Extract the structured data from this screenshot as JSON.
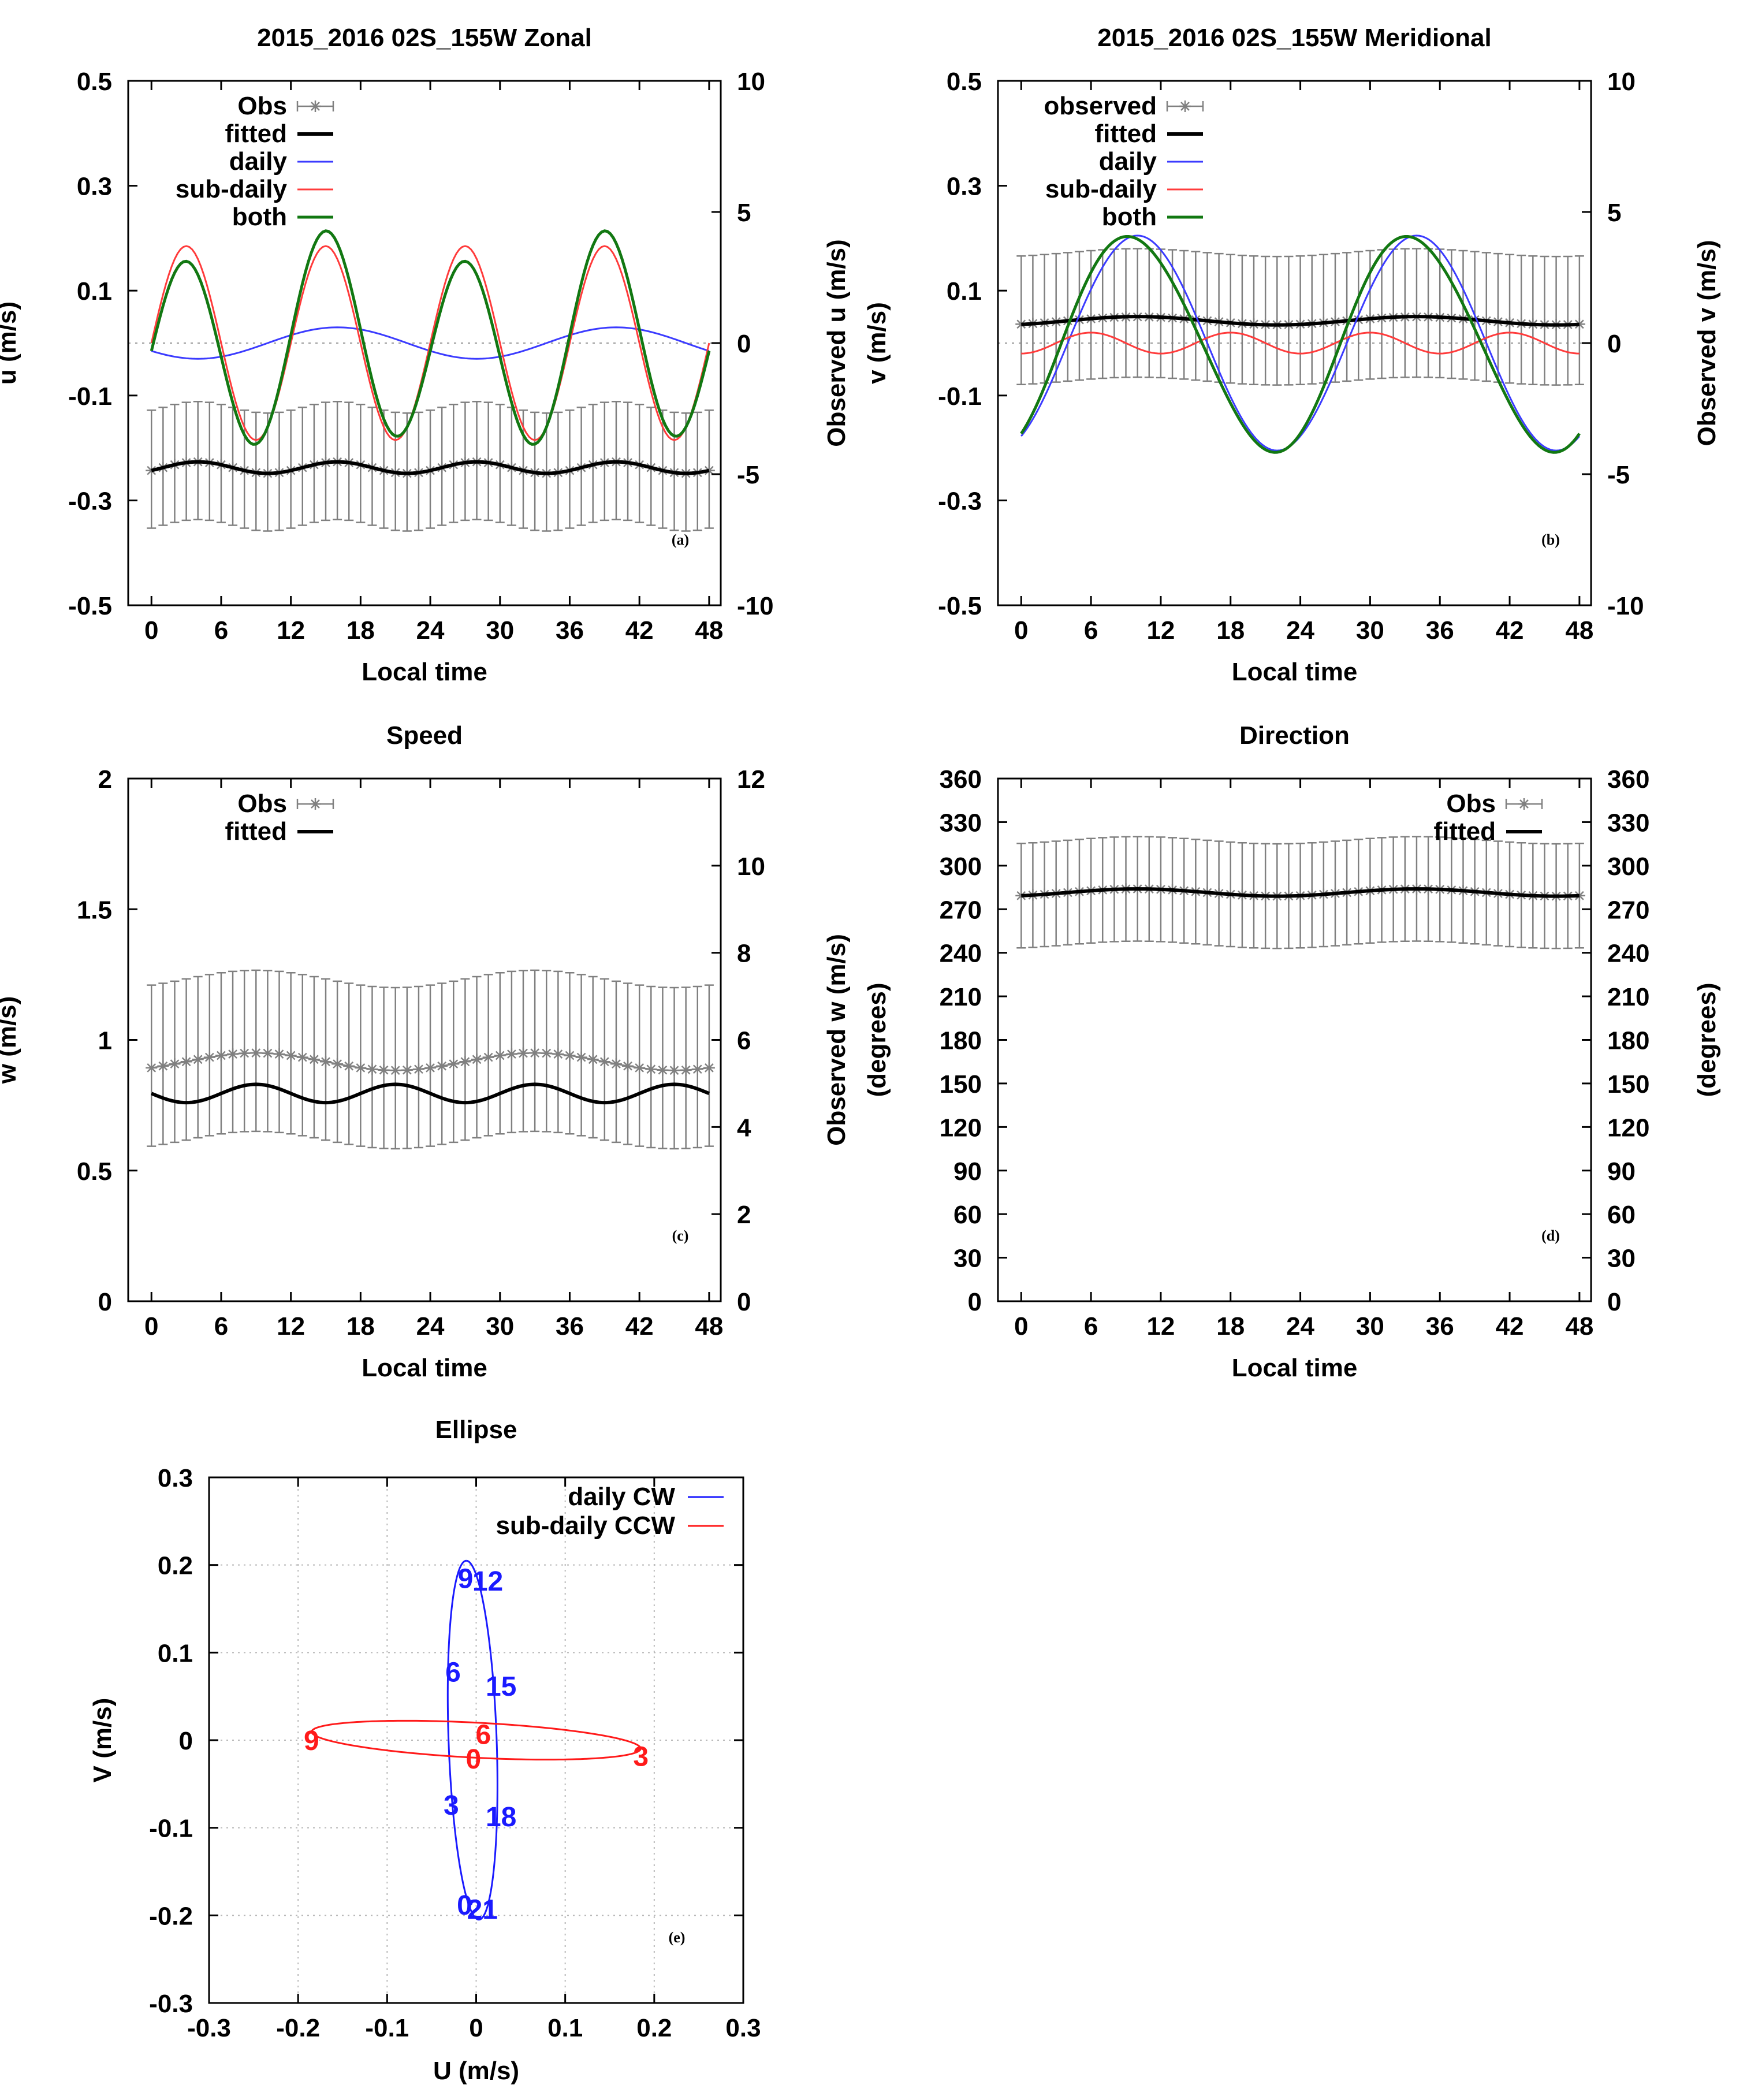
{
  "chart_data": [
    {
      "id": "a",
      "type": "line",
      "title": "2015_2016 02S_155W  Zonal",
      "tag": "(a)",
      "xlabel": "Local time",
      "ylabel": "u (m/s)",
      "y2label": "Observed u (m/s)",
      "xlim": [
        -2,
        49
      ],
      "xticks": [
        0,
        6,
        12,
        18,
        24,
        30,
        36,
        42,
        48
      ],
      "ylim": [
        -0.5,
        0.5
      ],
      "yticks": [
        -0.5,
        -0.3,
        -0.1,
        0.1,
        0.3,
        0.5
      ],
      "y2lim": [
        -10,
        10
      ],
      "y2ticks": [
        -10,
        -5,
        0,
        5,
        10
      ],
      "zero_line": true,
      "legend": [
        "Obs",
        "fitted",
        "daily",
        "sub-daily",
        "both"
      ],
      "legend_placement": "top-left",
      "obs": {
        "label": "Obs",
        "axis": "right",
        "mean": -4.75,
        "amp": 0.22,
        "period": 12,
        "peak": 4,
        "err_lo": 2.2,
        "err_hi": 2.3,
        "step": 1
      },
      "fitted": {
        "label": "fitted",
        "axis": "right",
        "mean": -4.75,
        "amp": 0.22,
        "period": 12,
        "peak": 4
      },
      "series": [
        {
          "name": "daily",
          "color": "#3b3bff",
          "mean": 0.0,
          "amp": 0.03,
          "period": 24,
          "peak": 16
        },
        {
          "name": "sub-daily",
          "color": "#ff3b3b",
          "mean": 0.0,
          "amp": 0.185,
          "period": 12,
          "peak": 3
        },
        {
          "name": "both",
          "color": "#127812",
          "components": [
            {
              "amp": 0.03,
              "period": 24,
              "peak": 16
            },
            {
              "amp": 0.185,
              "period": 12,
              "peak": 3
            }
          ]
        }
      ]
    },
    {
      "id": "b",
      "type": "line",
      "title": "2015_2016 02S_155W  Meridional",
      "tag": "(b)",
      "xlabel": "Local time",
      "ylabel": "v (m/s)",
      "y2label": "Observed v (m/s)",
      "xlim": [
        -2,
        49
      ],
      "xticks": [
        0,
        6,
        12,
        18,
        24,
        30,
        36,
        42,
        48
      ],
      "ylim": [
        -0.5,
        0.5
      ],
      "yticks": [
        -0.5,
        -0.3,
        -0.1,
        0.1,
        0.3,
        0.5
      ],
      "y2lim": [
        -10,
        10
      ],
      "y2ticks": [
        -10,
        -5,
        0,
        5,
        10
      ],
      "zero_line": true,
      "legend": [
        "observed",
        "fitted",
        "daily",
        "sub-daily",
        "both"
      ],
      "legend_placement": "top-left",
      "obs": {
        "label": "observed",
        "axis": "right",
        "mean": 0.85,
        "amp": 0.15,
        "period": 24,
        "peak": 10,
        "err_lo": 2.3,
        "err_hi": 2.6,
        "step": 1
      },
      "fitted": {
        "label": "fitted",
        "axis": "right",
        "mean": 0.85,
        "amp": 0.16,
        "period": 24,
        "peak": 10
      },
      "series": [
        {
          "name": "daily",
          "color": "#3b3bff",
          "mean": 0.0,
          "amp": 0.205,
          "period": 24,
          "peak": 10
        },
        {
          "name": "sub-daily",
          "color": "#ff3b3b",
          "mean": 0.0,
          "amp": 0.02,
          "period": 12,
          "peak": 6
        },
        {
          "name": "both",
          "color": "#127812",
          "components": [
            {
              "amp": 0.205,
              "period": 24,
              "peak": 9.5
            },
            {
              "amp": 0.01,
              "period": 12,
              "peak": 6
            }
          ]
        }
      ]
    },
    {
      "id": "c",
      "type": "line",
      "title": "Speed",
      "tag": "(c)",
      "xlabel": "Local time",
      "ylabel": "w (m/s)",
      "y2label": "Observed w (m/s)",
      "xlim": [
        -2,
        49
      ],
      "xticks": [
        0,
        6,
        12,
        18,
        24,
        30,
        36,
        42,
        48
      ],
      "ylim": [
        0,
        2
      ],
      "yticks": [
        0,
        0.5,
        1,
        1.5,
        2
      ],
      "y2lim": [
        0,
        12
      ],
      "y2ticks": [
        0,
        2,
        4,
        6,
        8,
        10,
        12
      ],
      "zero_line": false,
      "legend": [
        "Obs",
        "fitted"
      ],
      "legend_placement": "top-left",
      "obs": {
        "label": "Obs",
        "axis": "right",
        "mean": 5.5,
        "amp": 0.2,
        "period": 24,
        "peak": 9,
        "err_lo": 1.8,
        "err_hi": 1.9,
        "step": 1
      },
      "fitted": {
        "label": "fitted",
        "axis": "left",
        "mean": 0.795,
        "amp": 0.035,
        "period": 12,
        "peak": 9
      },
      "series": []
    },
    {
      "id": "d",
      "type": "line",
      "title": "Direction",
      "tag": "(d)",
      "xlabel": "Local time",
      "ylabel": "(degrees)",
      "y2label": "(degrees)",
      "xlim": [
        -2,
        49
      ],
      "xticks": [
        0,
        6,
        12,
        18,
        24,
        30,
        36,
        42,
        48
      ],
      "ylim": [
        0,
        360
      ],
      "yticks": [
        0,
        30,
        60,
        90,
        120,
        150,
        180,
        210,
        240,
        270,
        300,
        330,
        360
      ],
      "y2lim": [
        0,
        360
      ],
      "y2ticks": [
        0,
        30,
        60,
        90,
        120,
        150,
        180,
        210,
        240,
        270,
        300,
        330,
        360
      ],
      "zero_line": false,
      "legend": [
        "Obs",
        "fitted"
      ],
      "legend_placement": "top-right",
      "obs": {
        "label": "Obs",
        "axis": "right",
        "mean": 281.5,
        "amp": 2.5,
        "period": 24,
        "peak": 10,
        "err_lo": 36,
        "err_hi": 36,
        "step": 1
      },
      "fitted": {
        "label": "fitted",
        "axis": "left",
        "mean": 281.5,
        "amp": 2.5,
        "period": 24,
        "peak": 10
      },
      "series": []
    },
    {
      "id": "e",
      "type": "scatter",
      "title": "Ellipse",
      "tag": "(e)",
      "xlabel": "U (m/s)",
      "ylabel": "V (m/s)",
      "xlim": [
        -0.3,
        0.3
      ],
      "xticks": [
        -0.3,
        -0.2,
        -0.1,
        0,
        0.1,
        0.2,
        0.3
      ],
      "ylim": [
        -0.3,
        0.3
      ],
      "yticks": [
        -0.3,
        -0.2,
        -0.1,
        0,
        0.1,
        0.2,
        0.3
      ],
      "grid": true,
      "legend": [
        "daily CW",
        "sub-daily CCW"
      ],
      "legend_placement": "top-right",
      "ellipses": [
        {
          "name": "daily CW",
          "color": "#1a1aff",
          "cx": -0.004,
          "cy": 0.0,
          "a": 0.205,
          "b": 0.027,
          "angle_deg": 92
        },
        {
          "name": "sub-daily CCW",
          "color": "#ff1a1a",
          "cx": 0.0,
          "cy": 0.0,
          "a": 0.185,
          "b": 0.02,
          "angle_deg": -3
        }
      ],
      "hour_labels": [
        {
          "text": "9",
          "color": "#1a1aff",
          "u": -0.012,
          "v": 0.185
        },
        {
          "text": "12",
          "color": "#1a1aff",
          "u": 0.013,
          "v": 0.182
        },
        {
          "text": "6",
          "color": "#1a1aff",
          "u": -0.026,
          "v": 0.078
        },
        {
          "text": "15",
          "color": "#1a1aff",
          "u": 0.028,
          "v": 0.062
        },
        {
          "text": "3",
          "color": "#1a1aff",
          "u": -0.028,
          "v": -0.074
        },
        {
          "text": "18",
          "color": "#1a1aff",
          "u": 0.028,
          "v": -0.087
        },
        {
          "text": "0",
          "color": "#1a1aff",
          "u": -0.013,
          "v": -0.188
        },
        {
          "text": "21",
          "color": "#1a1aff",
          "u": 0.007,
          "v": -0.193
        },
        {
          "text": "9",
          "color": "#ff1a1a",
          "u": -0.185,
          "v": 0.0
        },
        {
          "text": "6",
          "color": "#ff1a1a",
          "u": 0.008,
          "v": 0.007
        },
        {
          "text": "0",
          "color": "#ff1a1a",
          "u": -0.003,
          "v": -0.021
        },
        {
          "text": "3",
          "color": "#ff1a1a",
          "u": 0.185,
          "v": -0.018
        }
      ]
    }
  ],
  "colors": {
    "obs": "#808080",
    "fitted": "#000000",
    "grid": "#b8b8b8"
  }
}
